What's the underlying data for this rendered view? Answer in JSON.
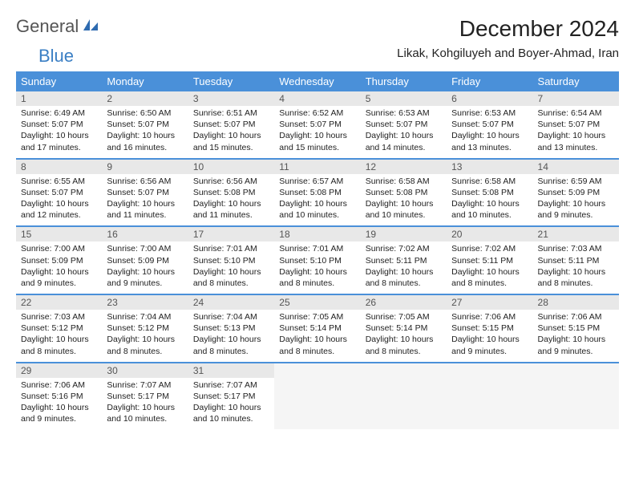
{
  "logo": {
    "part1": "General",
    "part2": "Blue"
  },
  "title": "December 2024",
  "location": "Likak, Kohgiluyeh and Boyer-Ahmad, Iran",
  "header_bg": "#4a90d9",
  "header_text_color": "#ffffff",
  "daynum_bg": "#e8e8e8",
  "row_border_color": "#4a90d9",
  "days_of_week": [
    "Sunday",
    "Monday",
    "Tuesday",
    "Wednesday",
    "Thursday",
    "Friday",
    "Saturday"
  ],
  "weeks": [
    [
      {
        "n": "1",
        "sr": "6:49 AM",
        "ss": "5:07 PM",
        "dl": "10 hours and 17 minutes."
      },
      {
        "n": "2",
        "sr": "6:50 AM",
        "ss": "5:07 PM",
        "dl": "10 hours and 16 minutes."
      },
      {
        "n": "3",
        "sr": "6:51 AM",
        "ss": "5:07 PM",
        "dl": "10 hours and 15 minutes."
      },
      {
        "n": "4",
        "sr": "6:52 AM",
        "ss": "5:07 PM",
        "dl": "10 hours and 15 minutes."
      },
      {
        "n": "5",
        "sr": "6:53 AM",
        "ss": "5:07 PM",
        "dl": "10 hours and 14 minutes."
      },
      {
        "n": "6",
        "sr": "6:53 AM",
        "ss": "5:07 PM",
        "dl": "10 hours and 13 minutes."
      },
      {
        "n": "7",
        "sr": "6:54 AM",
        "ss": "5:07 PM",
        "dl": "10 hours and 13 minutes."
      }
    ],
    [
      {
        "n": "8",
        "sr": "6:55 AM",
        "ss": "5:07 PM",
        "dl": "10 hours and 12 minutes."
      },
      {
        "n": "9",
        "sr": "6:56 AM",
        "ss": "5:07 PM",
        "dl": "10 hours and 11 minutes."
      },
      {
        "n": "10",
        "sr": "6:56 AM",
        "ss": "5:08 PM",
        "dl": "10 hours and 11 minutes."
      },
      {
        "n": "11",
        "sr": "6:57 AM",
        "ss": "5:08 PM",
        "dl": "10 hours and 10 minutes."
      },
      {
        "n": "12",
        "sr": "6:58 AM",
        "ss": "5:08 PM",
        "dl": "10 hours and 10 minutes."
      },
      {
        "n": "13",
        "sr": "6:58 AM",
        "ss": "5:08 PM",
        "dl": "10 hours and 10 minutes."
      },
      {
        "n": "14",
        "sr": "6:59 AM",
        "ss": "5:09 PM",
        "dl": "10 hours and 9 minutes."
      }
    ],
    [
      {
        "n": "15",
        "sr": "7:00 AM",
        "ss": "5:09 PM",
        "dl": "10 hours and 9 minutes."
      },
      {
        "n": "16",
        "sr": "7:00 AM",
        "ss": "5:09 PM",
        "dl": "10 hours and 9 minutes."
      },
      {
        "n": "17",
        "sr": "7:01 AM",
        "ss": "5:10 PM",
        "dl": "10 hours and 8 minutes."
      },
      {
        "n": "18",
        "sr": "7:01 AM",
        "ss": "5:10 PM",
        "dl": "10 hours and 8 minutes."
      },
      {
        "n": "19",
        "sr": "7:02 AM",
        "ss": "5:11 PM",
        "dl": "10 hours and 8 minutes."
      },
      {
        "n": "20",
        "sr": "7:02 AM",
        "ss": "5:11 PM",
        "dl": "10 hours and 8 minutes."
      },
      {
        "n": "21",
        "sr": "7:03 AM",
        "ss": "5:11 PM",
        "dl": "10 hours and 8 minutes."
      }
    ],
    [
      {
        "n": "22",
        "sr": "7:03 AM",
        "ss": "5:12 PM",
        "dl": "10 hours and 8 minutes."
      },
      {
        "n": "23",
        "sr": "7:04 AM",
        "ss": "5:12 PM",
        "dl": "10 hours and 8 minutes."
      },
      {
        "n": "24",
        "sr": "7:04 AM",
        "ss": "5:13 PM",
        "dl": "10 hours and 8 minutes."
      },
      {
        "n": "25",
        "sr": "7:05 AM",
        "ss": "5:14 PM",
        "dl": "10 hours and 8 minutes."
      },
      {
        "n": "26",
        "sr": "7:05 AM",
        "ss": "5:14 PM",
        "dl": "10 hours and 8 minutes."
      },
      {
        "n": "27",
        "sr": "7:06 AM",
        "ss": "5:15 PM",
        "dl": "10 hours and 9 minutes."
      },
      {
        "n": "28",
        "sr": "7:06 AM",
        "ss": "5:15 PM",
        "dl": "10 hours and 9 minutes."
      }
    ],
    [
      {
        "n": "29",
        "sr": "7:06 AM",
        "ss": "5:16 PM",
        "dl": "10 hours and 9 minutes."
      },
      {
        "n": "30",
        "sr": "7:07 AM",
        "ss": "5:17 PM",
        "dl": "10 hours and 10 minutes."
      },
      {
        "n": "31",
        "sr": "7:07 AM",
        "ss": "5:17 PM",
        "dl": "10 hours and 10 minutes."
      },
      null,
      null,
      null,
      null
    ]
  ],
  "labels": {
    "sunrise": "Sunrise:",
    "sunset": "Sunset:",
    "daylight": "Daylight:"
  }
}
